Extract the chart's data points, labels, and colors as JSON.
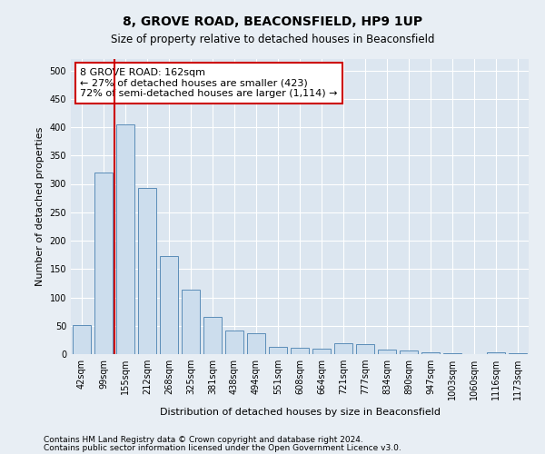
{
  "title": "8, GROVE ROAD, BEACONSFIELD, HP9 1UP",
  "subtitle": "Size of property relative to detached houses in Beaconsfield",
  "xlabel": "Distribution of detached houses by size in Beaconsfield",
  "ylabel": "Number of detached properties",
  "categories": [
    "42sqm",
    "99sqm",
    "155sqm",
    "212sqm",
    "268sqm",
    "325sqm",
    "381sqm",
    "438sqm",
    "494sqm",
    "551sqm",
    "608sqm",
    "664sqm",
    "721sqm",
    "777sqm",
    "834sqm",
    "890sqm",
    "947sqm",
    "1003sqm",
    "1060sqm",
    "1116sqm",
    "1173sqm"
  ],
  "values": [
    52,
    320,
    405,
    293,
    173,
    113,
    65,
    42,
    37,
    13,
    11,
    9,
    20,
    18,
    8,
    6,
    4,
    2,
    0,
    3,
    2
  ],
  "bar_color": "#ccdded",
  "bar_edge_color": "#5b8db8",
  "property_line_color": "#cc0000",
  "annotation_line1": "8 GROVE ROAD: 162sqm",
  "annotation_line2": "← 27% of detached houses are smaller (423)",
  "annotation_line3": "72% of semi-detached houses are larger (1,114) →",
  "annotation_box_color": "#cc0000",
  "ylim": [
    0,
    520
  ],
  "yticks": [
    0,
    50,
    100,
    150,
    200,
    250,
    300,
    350,
    400,
    450,
    500
  ],
  "footer_line1": "Contains HM Land Registry data © Crown copyright and database right 2024.",
  "footer_line2": "Contains public sector information licensed under the Open Government Licence v3.0.",
  "background_color": "#e8eef4",
  "plot_bg_color": "#dce6f0",
  "title_fontsize": 10,
  "subtitle_fontsize": 8.5,
  "axis_label_fontsize": 8,
  "tick_fontsize": 7,
  "footer_fontsize": 6.5,
  "grid_color": "#ffffff",
  "annotation_fontsize": 8
}
